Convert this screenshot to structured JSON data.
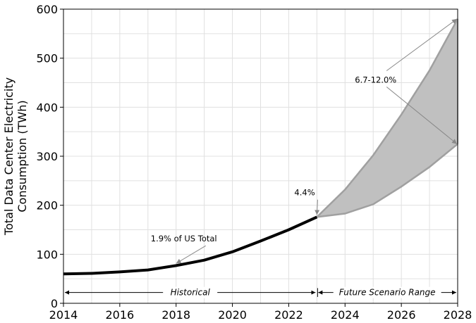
{
  "chart_data": {
    "type": "line",
    "title": "",
    "xlabel": "",
    "ylabel_line1": "Total Data Center Electricity",
    "ylabel_line2": "Consumption (TWh)",
    "xlim": [
      2014,
      2028
    ],
    "ylim": [
      0,
      600
    ],
    "xticks": [
      2014,
      2016,
      2018,
      2020,
      2022,
      2024,
      2026,
      2028
    ],
    "yticks": [
      0,
      100,
      200,
      300,
      400,
      500,
      600
    ],
    "grid": true,
    "series": [
      {
        "x": [
          2014,
          2015,
          2016,
          2017,
          2018,
          2019,
          2020,
          2021,
          2022,
          2023
        ],
        "y": [
          60,
          61,
          64,
          68,
          77,
          88,
          105,
          127,
          150,
          176
        ]
      }
    ],
    "scenario_range": {
      "x": [
        2023,
        2024,
        2025,
        2026,
        2027,
        2028
      ],
      "upper": [
        176,
        232,
        302,
        385,
        475,
        580
      ],
      "lower": [
        176,
        183,
        202,
        238,
        278,
        325
      ]
    },
    "annotations": [
      {
        "text": "1.9% of US Total",
        "x": 2017.1,
        "y": 126,
        "target_x": 2018,
        "target_y": 77
      },
      {
        "text": "4.4%",
        "x": 2022.2,
        "y": 220,
        "target_x": 2023,
        "target_y": 176
      },
      {
        "text": "6.7-12.0%",
        "x": 2024.35,
        "y": 450
      }
    ],
    "ranges": [
      {
        "label": "Historical",
        "from": 2014,
        "to": 2023,
        "y": 22
      },
      {
        "label": "Future Scenario Range",
        "from": 2023,
        "to": 2028,
        "y": 22
      }
    ],
    "colors": {
      "historical_line": "#000000",
      "scenario_fill": "#c0c0c0",
      "scenario_edge": "#a0a0a0",
      "grid": "#e0e0e0",
      "arrow": "#888888"
    }
  }
}
